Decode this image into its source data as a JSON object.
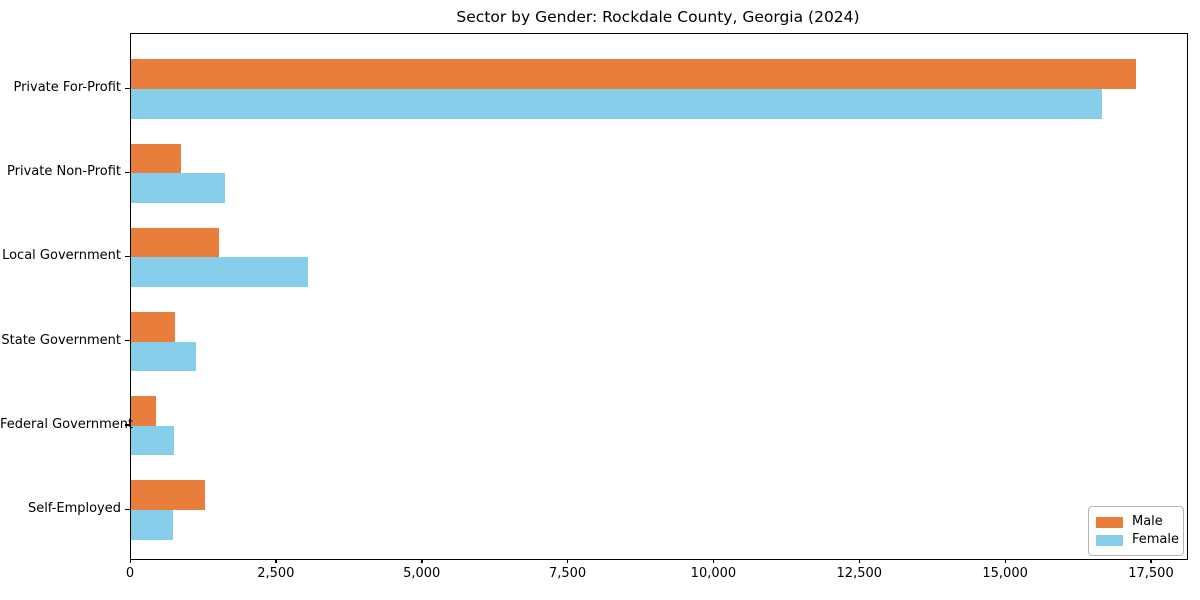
{
  "chart_data": {
    "type": "bar",
    "orientation": "horizontal",
    "title": "Sector by Gender: Rockdale County, Georgia (2024)",
    "categories": [
      "Private For-Profit",
      "Private Non-Profit",
      "Local Government",
      "State Government",
      "Federal Government",
      "Self-Employed"
    ],
    "series": [
      {
        "name": "Male",
        "color": "#E87D3C",
        "values": [
          17230,
          855,
          1500,
          755,
          430,
          1270
        ]
      },
      {
        "name": "Female",
        "color": "#87CEEB",
        "values": [
          16650,
          1610,
          3030,
          1115,
          730,
          715
        ]
      }
    ],
    "xlabel": "",
    "ylabel": "",
    "xlim": [
      0,
      18100
    ],
    "xticks": [
      0,
      2500,
      5000,
      7500,
      10000,
      12500,
      15000,
      17500
    ],
    "xtick_labels": [
      "0",
      "2,500",
      "5,000",
      "7,500",
      "10,000",
      "12,500",
      "15,000",
      "17,500"
    ],
    "grid": false,
    "legend_position": "lower right",
    "background_color": "#ffffff",
    "spine_color": "#000000"
  }
}
